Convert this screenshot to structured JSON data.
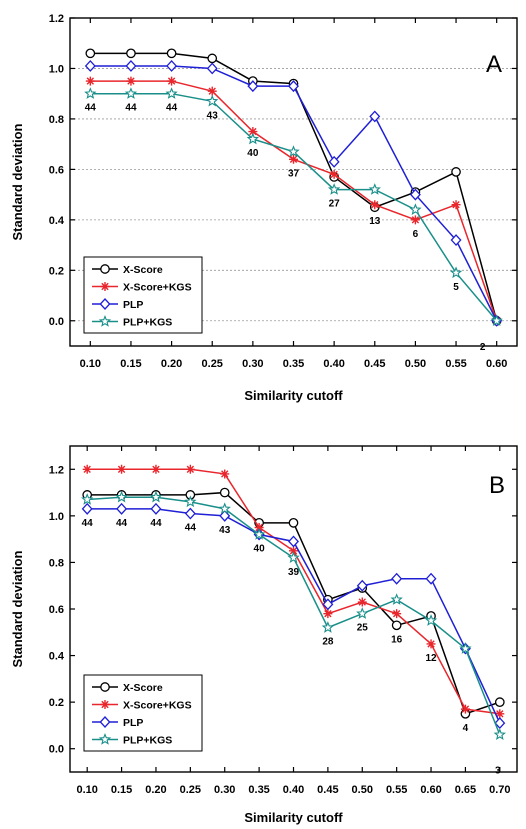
{
  "chart_data": [
    {
      "panel_label": "A",
      "type": "line",
      "xlabel": "Similarity cutoff",
      "ylabel": "Standard deviation",
      "x": [
        "0.10",
        "0.15",
        "0.20",
        "0.25",
        "0.30",
        "0.35",
        "0.40",
        "0.45",
        "0.50",
        "0.55",
        "0.60"
      ],
      "xlim": [
        0.075,
        0.625
      ],
      "ylim": [
        -0.1,
        1.2
      ],
      "yticks": [
        "0.0",
        "0.2",
        "0.4",
        "0.6",
        "0.8",
        "1.0",
        "1.2"
      ],
      "grid": "horizontal dashed",
      "legend_position": "bottom-left",
      "series": [
        {
          "name": "X-Score",
          "color": "#000000",
          "marker": "circle",
          "values": [
            1.06,
            1.06,
            1.06,
            1.04,
            0.95,
            0.94,
            0.57,
            0.45,
            0.51,
            0.59,
            0.0
          ]
        },
        {
          "name": "X-Score+KGS",
          "color": "#e8262c",
          "marker": "asterisk",
          "values": [
            0.95,
            0.95,
            0.95,
            0.91,
            0.75,
            0.64,
            0.58,
            0.46,
            0.4,
            0.46,
            0.0
          ]
        },
        {
          "name": "PLP",
          "color": "#1f1fd6",
          "marker": "diamond",
          "values": [
            1.01,
            1.01,
            1.01,
            1.0,
            0.93,
            0.93,
            0.63,
            0.81,
            0.5,
            0.32,
            0.0
          ]
        },
        {
          "name": "PLP+KGS",
          "color": "#1a8f8a",
          "marker": "star",
          "values": [
            0.9,
            0.9,
            0.9,
            0.87,
            0.72,
            0.67,
            0.52,
            0.52,
            0.44,
            0.19,
            0.0
          ]
        }
      ],
      "point_annotations": [
        "44",
        "44",
        "44",
        "43",
        "40",
        "37",
        "27",
        "13",
        "6",
        "5",
        "2"
      ]
    },
    {
      "panel_label": "B",
      "type": "line",
      "xlabel": "Similarity cutoff",
      "ylabel": "Standard deviation",
      "x": [
        "0.10",
        "0.15",
        "0.20",
        "0.25",
        "0.30",
        "0.35",
        "0.40",
        "0.45",
        "0.50",
        "0.55",
        "0.60",
        "0.65",
        "0.70"
      ],
      "xlim": [
        0.075,
        0.725
      ],
      "ylim": [
        -0.1,
        1.3
      ],
      "yticks": [
        "0.0",
        "0.2",
        "0.4",
        "0.6",
        "0.8",
        "1.0",
        "1.2"
      ],
      "grid": "none",
      "legend_position": "bottom-left",
      "series": [
        {
          "name": "X-Score",
          "color": "#000000",
          "marker": "circle",
          "values": [
            1.09,
            1.09,
            1.09,
            1.09,
            1.1,
            0.97,
            0.97,
            0.64,
            0.69,
            0.53,
            0.57,
            0.15,
            0.2
          ]
        },
        {
          "name": "X-Score+KGS",
          "color": "#e8262c",
          "marker": "asterisk",
          "values": [
            1.2,
            1.2,
            1.2,
            1.2,
            1.18,
            0.95,
            0.85,
            0.58,
            0.63,
            0.58,
            0.45,
            0.17,
            0.15
          ]
        },
        {
          "name": "PLP",
          "color": "#1f1fd6",
          "marker": "diamond",
          "values": [
            1.03,
            1.03,
            1.03,
            1.01,
            1.0,
            0.92,
            0.89,
            0.62,
            0.7,
            0.73,
            0.73,
            0.43,
            0.11
          ]
        },
        {
          "name": "PLP+KGS",
          "color": "#1a8f8a",
          "marker": "star",
          "values": [
            1.07,
            1.08,
            1.08,
            1.06,
            1.03,
            0.92,
            0.82,
            0.52,
            0.58,
            0.64,
            0.55,
            0.43,
            0.06
          ]
        }
      ],
      "point_annotations": [
        "44",
        "44",
        "44",
        "44",
        "43",
        "40",
        "39",
        "28",
        "25",
        "16",
        "12",
        "4",
        "3"
      ]
    }
  ]
}
